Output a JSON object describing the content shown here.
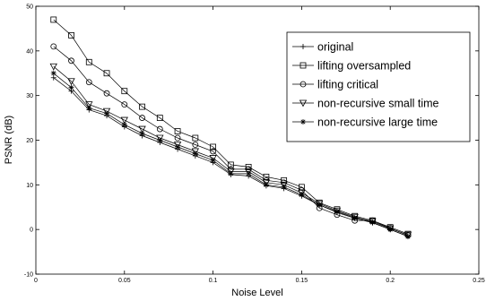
{
  "chart_data": {
    "type": "line",
    "title": "",
    "xlabel": "Noise Level",
    "ylabel": "PSNR (dB)",
    "xlim": [
      0,
      0.25
    ],
    "ylim": [
      -10,
      50
    ],
    "xticks": [
      0,
      0.05,
      0.1,
      0.15,
      0.2,
      0.25
    ],
    "xtick_labels": [
      "0",
      "0.05",
      "0.1",
      "0.15",
      "0.2",
      "0.25"
    ],
    "yticks": [
      -10,
      0,
      10,
      20,
      30,
      40,
      50
    ],
    "ytick_labels": [
      "-10",
      "0",
      "10",
      "20",
      "30",
      "40",
      "50"
    ],
    "grid": false,
    "legend_position": "top-right",
    "x": [
      0.01,
      0.02,
      0.03,
      0.04,
      0.05,
      0.06,
      0.07,
      0.08,
      0.09,
      0.1,
      0.11,
      0.12,
      0.13,
      0.14,
      0.15,
      0.16,
      0.17,
      0.18,
      0.19,
      0.2,
      0.21
    ],
    "series": [
      {
        "name": "original",
        "marker": "plus",
        "values": [
          34,
          31,
          26.8,
          25.5,
          23,
          21,
          19.5,
          18,
          16.5,
          15,
          12.3,
          12,
          9.8,
          9.2,
          7.5,
          5.5,
          3.8,
          2.5,
          1.5,
          0,
          -1.5
        ]
      },
      {
        "name": "lifting oversampled",
        "marker": "square",
        "values": [
          47,
          43.5,
          37.5,
          35,
          31,
          27.5,
          25,
          22,
          20.5,
          18.5,
          14.5,
          14,
          11.8,
          11,
          9.5,
          6,
          4.5,
          3,
          2,
          0.5,
          -1
        ]
      },
      {
        "name": "lifting critical",
        "marker": "circle",
        "values": [
          41,
          37.8,
          33,
          30.5,
          28,
          25,
          22.5,
          20.5,
          19,
          17.5,
          13.5,
          13.5,
          11,
          10.5,
          8.8,
          4.8,
          3.3,
          2,
          2,
          0.3,
          -1.3
        ]
      },
      {
        "name": "non-recursive small time",
        "marker": "triangle-down",
        "values": [
          36.5,
          33.2,
          28,
          26.5,
          24.5,
          22.5,
          20.5,
          19,
          17.5,
          16,
          13,
          13,
          10.5,
          10,
          8.2,
          5.8,
          4.2,
          2.8,
          1.8,
          0.2,
          -1.2
        ]
      },
      {
        "name": "non-recursive large time",
        "marker": "star",
        "values": [
          35,
          31.8,
          27.2,
          26,
          23.5,
          21.5,
          20,
          18.5,
          17,
          15.5,
          12.5,
          12.5,
          10,
          9.5,
          7.8,
          5.5,
          4,
          2.6,
          1.6,
          0,
          -1.6
        ]
      }
    ]
  }
}
